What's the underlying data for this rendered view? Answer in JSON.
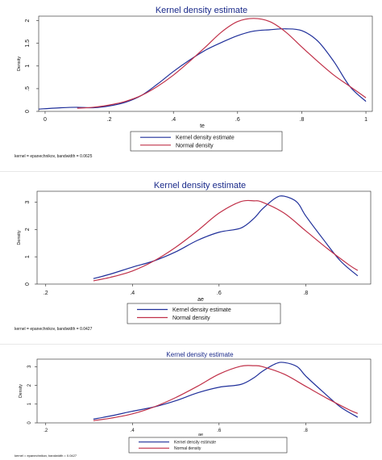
{
  "chart_data": [
    {
      "type": "line",
      "title": "Kernel density estimate",
      "xlabel": "te",
      "ylabel": "Density",
      "xlim": [
        -0.02,
        1.02
      ],
      "ylim": [
        0,
        2.1
      ],
      "xticks": [
        0,
        0.2,
        0.4,
        0.6,
        0.8,
        1
      ],
      "xtick_labels": [
        "0",
        ".2",
        ".4",
        ".6",
        ".8",
        "1"
      ],
      "yticks": [
        0,
        0.5,
        1,
        1.5,
        2
      ],
      "ytick_labels": [
        "0",
        ".5",
        "1",
        "1.5",
        "2"
      ],
      "grid": false,
      "legend": "below",
      "note": "kernel = epanechnikov, bandwidth = 0.0625",
      "series": [
        {
          "name": "Kernel density estimate",
          "color": "#1f2f9a",
          "x": [
            -0.02,
            0.05,
            0.1,
            0.15,
            0.2,
            0.25,
            0.3,
            0.35,
            0.4,
            0.45,
            0.5,
            0.55,
            0.6,
            0.65,
            0.7,
            0.75,
            0.8,
            0.85,
            0.9,
            0.95,
            1.0
          ],
          "y": [
            0.05,
            0.08,
            0.09,
            0.08,
            0.12,
            0.2,
            0.35,
            0.6,
            0.88,
            1.13,
            1.35,
            1.52,
            1.67,
            1.77,
            1.8,
            1.82,
            1.78,
            1.55,
            1.1,
            0.55,
            0.22
          ]
        },
        {
          "name": "Normal density",
          "color": "#c03048",
          "x": [
            0.1,
            0.15,
            0.2,
            0.25,
            0.3,
            0.35,
            0.4,
            0.45,
            0.5,
            0.55,
            0.6,
            0.65,
            0.7,
            0.75,
            0.8,
            0.85,
            0.9,
            0.95,
            1.0
          ],
          "y": [
            0.07,
            0.09,
            0.14,
            0.22,
            0.35,
            0.55,
            0.8,
            1.1,
            1.42,
            1.75,
            1.98,
            2.05,
            1.98,
            1.75,
            1.42,
            1.1,
            0.8,
            0.55,
            0.3
          ]
        }
      ]
    },
    {
      "type": "line",
      "title": "Kernel density estimate",
      "xlabel": "ae",
      "ylabel": "Density",
      "xlim": [
        0.18,
        0.95
      ],
      "ylim": [
        0,
        3.4
      ],
      "xticks": [
        0.2,
        0.4,
        0.6,
        0.8
      ],
      "xtick_labels": [
        ".2",
        ".4",
        ".6",
        ".8"
      ],
      "yticks": [
        0,
        1,
        2,
        3
      ],
      "ytick_labels": [
        "0",
        "1",
        "2",
        "3"
      ],
      "grid": false,
      "legend": "below",
      "note": "kernel = epanechnikov, bandwidth = 0.0427",
      "series": [
        {
          "name": "Kernel density estimate",
          "color": "#1f2f9a",
          "x": [
            0.31,
            0.35,
            0.4,
            0.45,
            0.5,
            0.55,
            0.6,
            0.65,
            0.68,
            0.7,
            0.73,
            0.75,
            0.78,
            0.8,
            0.84,
            0.88,
            0.92
          ],
          "y": [
            0.2,
            0.37,
            0.62,
            0.85,
            1.18,
            1.6,
            1.9,
            2.05,
            2.4,
            2.75,
            3.15,
            3.22,
            3.0,
            2.5,
            1.65,
            0.85,
            0.3
          ]
        },
        {
          "name": "Normal density",
          "color": "#c03048",
          "x": [
            0.31,
            0.35,
            0.4,
            0.45,
            0.5,
            0.55,
            0.6,
            0.65,
            0.68,
            0.7,
            0.75,
            0.8,
            0.85,
            0.9,
            0.92
          ],
          "y": [
            0.12,
            0.25,
            0.48,
            0.85,
            1.35,
            1.95,
            2.6,
            3.02,
            3.05,
            3.0,
            2.6,
            1.95,
            1.3,
            0.7,
            0.5
          ]
        }
      ]
    },
    {
      "type": "line",
      "title": "Kernel density estimate",
      "xlabel": "ae",
      "ylabel": "Density",
      "xlim": [
        0.18,
        0.95
      ],
      "ylim": [
        0,
        3.4
      ],
      "xticks": [
        0.2,
        0.4,
        0.6,
        0.8
      ],
      "xtick_labels": [
        ".2",
        ".4",
        ".6",
        ".8"
      ],
      "yticks": [
        0,
        1,
        2,
        3
      ],
      "ytick_labels": [
        "0",
        "1",
        "2",
        "3"
      ],
      "grid": false,
      "legend": "below",
      "note": "kernel = epanechnikov, bandwidth = 0.0427",
      "series": [
        {
          "name": "Kernel density estimate",
          "color": "#1f2f9a",
          "x": [
            0.31,
            0.35,
            0.4,
            0.45,
            0.5,
            0.55,
            0.6,
            0.65,
            0.68,
            0.7,
            0.73,
            0.75,
            0.78,
            0.8,
            0.84,
            0.88,
            0.92
          ],
          "y": [
            0.2,
            0.37,
            0.62,
            0.85,
            1.18,
            1.6,
            1.9,
            2.05,
            2.4,
            2.75,
            3.15,
            3.22,
            3.0,
            2.5,
            1.65,
            0.85,
            0.3
          ]
        },
        {
          "name": "Normal density",
          "color": "#c03048",
          "x": [
            0.31,
            0.35,
            0.4,
            0.45,
            0.5,
            0.55,
            0.6,
            0.65,
            0.68,
            0.7,
            0.75,
            0.8,
            0.85,
            0.9,
            0.92
          ],
          "y": [
            0.12,
            0.25,
            0.48,
            0.85,
            1.35,
            1.95,
            2.6,
            3.02,
            3.05,
            3.0,
            2.6,
            1.95,
            1.3,
            0.7,
            0.5
          ]
        }
      ]
    }
  ]
}
